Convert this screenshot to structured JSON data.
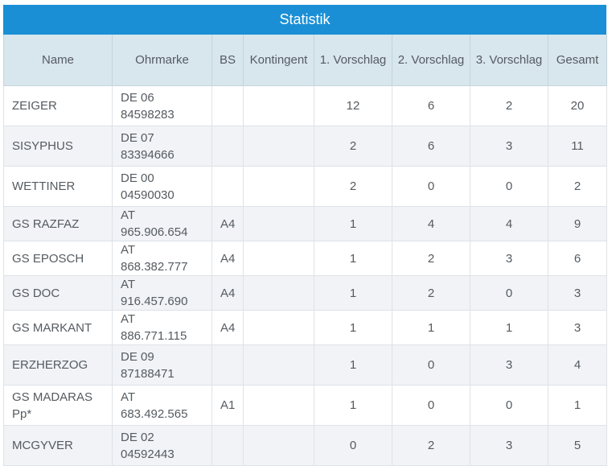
{
  "title": "Statistik",
  "headers": [
    "Name",
    "Ohrmarke",
    "BS",
    "Kontingent",
    "1. Vorschlag",
    "2. Vorschlag",
    "3. Vorschlag",
    "Gesamt"
  ],
  "rows": [
    {
      "name": "ZEIGER",
      "ohrmarke": [
        "DE 06",
        "84598283"
      ],
      "bs": "",
      "kontingent": "",
      "v1": "12",
      "v2": "6",
      "v3": "2",
      "gesamt": "20"
    },
    {
      "name": "SISYPHUS",
      "ohrmarke": [
        "DE 07",
        "83394666"
      ],
      "bs": "",
      "kontingent": "",
      "v1": "2",
      "v2": "6",
      "v3": "3",
      "gesamt": "11"
    },
    {
      "name": "WETTINER",
      "ohrmarke": [
        "DE 00",
        "04590030"
      ],
      "bs": "",
      "kontingent": "",
      "v1": "2",
      "v2": "0",
      "v3": "0",
      "gesamt": "2"
    },
    {
      "name": "GS RAZFAZ",
      "ohrmarke": [
        "AT 965.906.654"
      ],
      "bs": "A4",
      "kontingent": "",
      "v1": "1",
      "v2": "4",
      "v3": "4",
      "gesamt": "9"
    },
    {
      "name": "GS EPOSCH",
      "ohrmarke": [
        "AT 868.382.777"
      ],
      "bs": "A4",
      "kontingent": "",
      "v1": "1",
      "v2": "2",
      "v3": "3",
      "gesamt": "6"
    },
    {
      "name": "GS DOC",
      "ohrmarke": [
        "AT 916.457.690"
      ],
      "bs": "A4",
      "kontingent": "",
      "v1": "1",
      "v2": "2",
      "v3": "0",
      "gesamt": "3"
    },
    {
      "name": "GS MARKANT",
      "ohrmarke": [
        "AT 886.771.115"
      ],
      "bs": "A4",
      "kontingent": "",
      "v1": "1",
      "v2": "1",
      "v3": "1",
      "gesamt": "3"
    },
    {
      "name": "ERZHERZOG",
      "ohrmarke": [
        "DE 09",
        "87188471"
      ],
      "bs": "",
      "kontingent": "",
      "v1": "1",
      "v2": "0",
      "v3": "3",
      "gesamt": "4"
    },
    {
      "name": "GS MADARAS Pp*",
      "ohrmarke": [
        "AT 683.492.565"
      ],
      "bs": "A1",
      "kontingent": "",
      "v1": "1",
      "v2": "0",
      "v3": "0",
      "gesamt": "1"
    },
    {
      "name": "MCGYVER",
      "ohrmarke": [
        "DE 02",
        "04592443"
      ],
      "bs": "",
      "kontingent": "",
      "v1": "0",
      "v2": "2",
      "v3": "3",
      "gesamt": "5"
    }
  ]
}
